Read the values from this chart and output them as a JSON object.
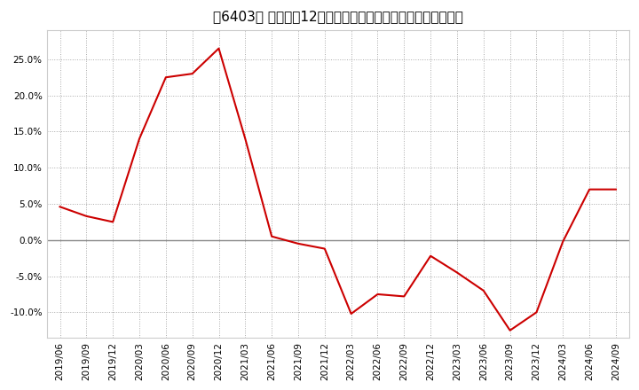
{
  "title": "［6403］ 売上高の12か月移動合計の対前年同期増減率の推移",
  "line_color": "#cc0000",
  "background_color": "#ffffff",
  "plot_bg_color": "#ffffff",
  "dates": [
    "2019/06",
    "2019/09",
    "2019/12",
    "2020/03",
    "2020/06",
    "2020/09",
    "2020/12",
    "2021/03",
    "2021/06",
    "2021/09",
    "2021/12",
    "2022/03",
    "2022/06",
    "2022/09",
    "2022/12",
    "2023/03",
    "2023/06",
    "2023/09",
    "2023/12",
    "2024/03",
    "2024/06",
    "2024/09"
  ],
  "values": [
    4.6,
    3.3,
    2.5,
    14.0,
    22.5,
    23.0,
    26.5,
    14.0,
    0.5,
    -0.5,
    -1.2,
    -10.2,
    -7.5,
    -7.8,
    -2.2,
    -4.5,
    -7.0,
    -12.5,
    -10.0,
    -0.2,
    7.0,
    7.0
  ],
  "yticks": [
    -10.0,
    -5.0,
    0.0,
    5.0,
    10.0,
    15.0,
    20.0,
    25.0
  ],
  "ylim": [
    -13.5,
    29.0
  ],
  "grid_color": "#aaaaaa",
  "zero_line_color": "#888888",
  "title_fontsize": 11,
  "tick_fontsize": 7.5
}
